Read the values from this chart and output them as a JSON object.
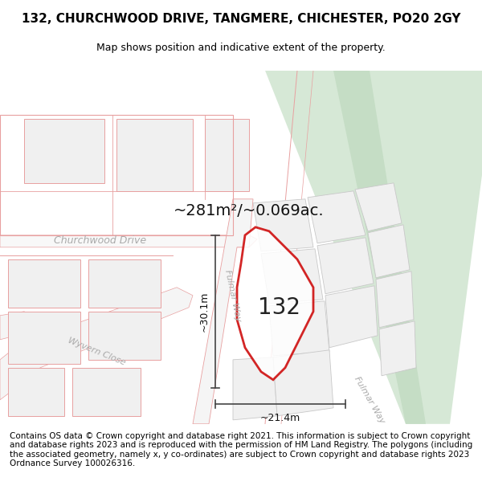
{
  "title": "132, CHURCHWOOD DRIVE, TANGMERE, CHICHESTER, PO20 2GY",
  "subtitle": "Map shows position and indicative extent of the property.",
  "footer": "Contains OS data © Crown copyright and database right 2021. This information is subject to Crown copyright and database rights 2023 and is reproduced with the permission of HM Land Registry. The polygons (including the associated geometry, namely x, y co-ordinates) are subject to Crown copyright and database rights 2023 Ordnance Survey 100026316.",
  "area_label": "~281m²/~0.069ac.",
  "width_label": "~21.4m",
  "height_label": "~30.1m",
  "plot_number": "132",
  "road_label_fulmar1": "Fulmar Way",
  "road_label_fulmar2": "Fulmar Way",
  "road_label_church": "Churchwood Drive",
  "road_label_wyvern": "Wyvern Close",
  "bg_color": "#ffffff",
  "map_bg": "#ffffff",
  "plot_outline_color": "#f5f5f5",
  "road_stroke": "#e8a0a0",
  "road_fill_light": "#f0f0f0",
  "green_fill": "#d6e8d6",
  "green_dark": "#c5ddc5",
  "plot_stroke": "#cc0000",
  "dim_color": "#444444",
  "label_color": "#aaaaaa",
  "title_fontsize": 11,
  "subtitle_fontsize": 9,
  "footer_fontsize": 7.5,
  "number_fontsize": 20,
  "area_fontsize": 14,
  "road_fontsize": 9,
  "dim_fontsize": 9
}
